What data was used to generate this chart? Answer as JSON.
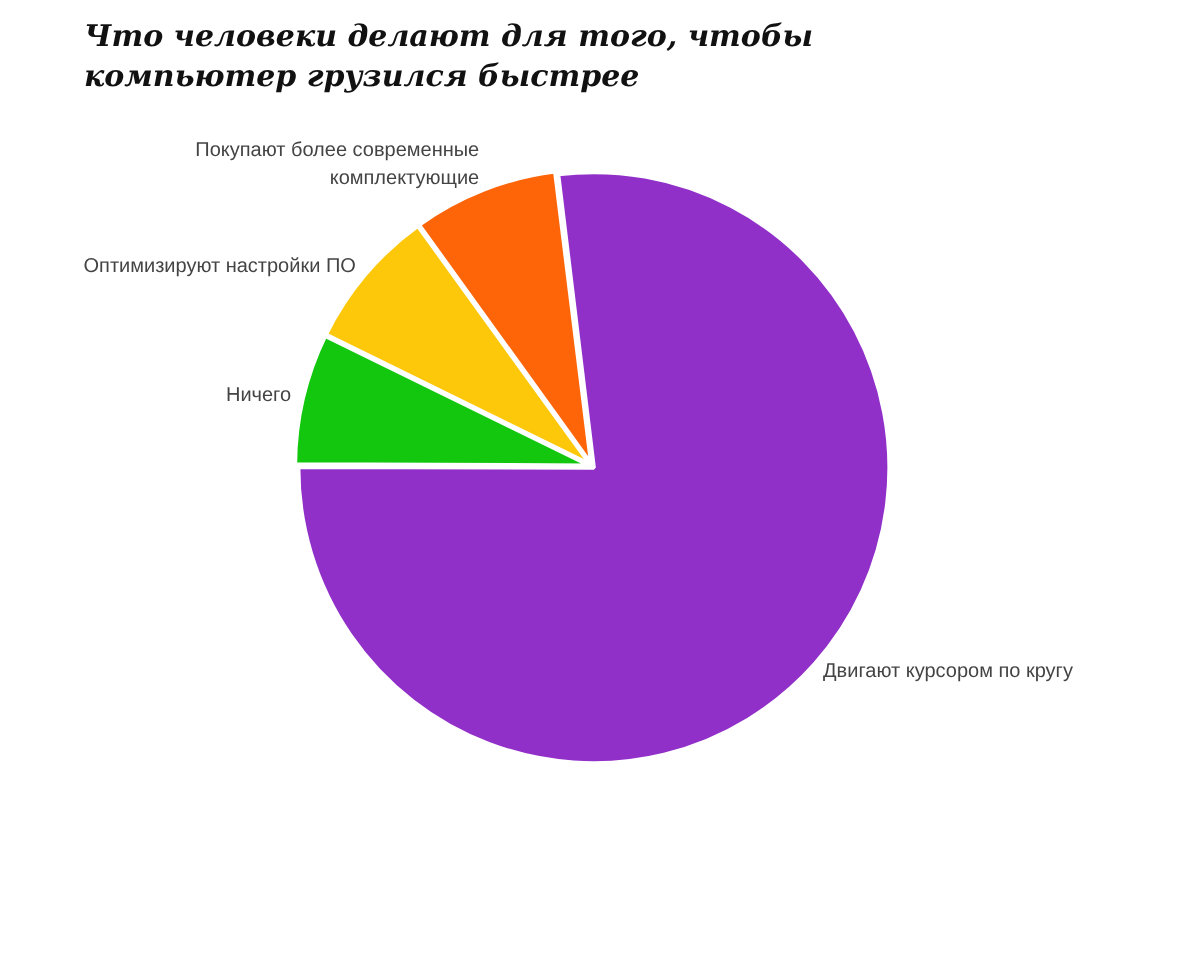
{
  "chart_data": {
    "type": "pie",
    "title": "Что человеки делают для того, чтобы компьютер грузился быстрее",
    "categories": [
      "Двигают курсором по кругу",
      "Ничего",
      "Оптимизируют настройки ПО",
      "Покупают более современные комплектующие"
    ],
    "values": [
      77,
      7.2,
      7.8,
      8
    ],
    "colors": [
      "#9130c9",
      "#12c70e",
      "#fdc80a",
      "#fd6508"
    ],
    "legend": false
  }
}
